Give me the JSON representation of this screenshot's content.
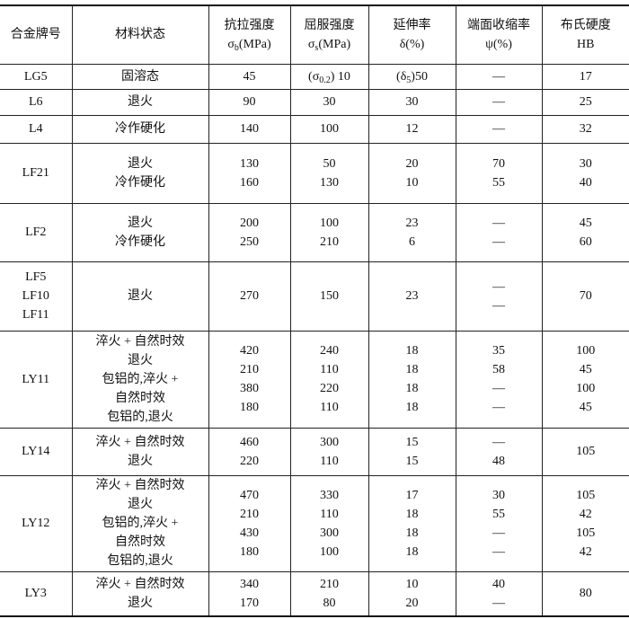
{
  "header": [
    [
      [
        "合金牌号"
      ]
    ],
    [
      [
        "材料状态"
      ]
    ],
    [
      [
        "抗拉强度"
      ],
      [
        [
          "σ",
          ""
        ],
        [
          "b",
          "sub"
        ],
        [
          "(MPa)",
          ""
        ]
      ]
    ],
    [
      [
        "屈服强度"
      ],
      [
        [
          "σ",
          ""
        ],
        [
          "s",
          "sub"
        ],
        [
          "(MPa)",
          ""
        ]
      ]
    ],
    [
      [
        "延伸率"
      ],
      [
        "δ(%)"
      ]
    ],
    [
      [
        "端面收缩率"
      ],
      [
        "ψ(%)"
      ]
    ],
    [
      [
        "布氏硬度"
      ],
      [
        "HB"
      ]
    ]
  ],
  "rows": [
    {
      "h": 28,
      "cells": [
        [
          "LG5"
        ],
        [
          "固溶态"
        ],
        [
          "45"
        ],
        [
          [
            [
              "(σ",
              ""
            ],
            [
              "0.2",
              "sub"
            ],
            [
              ") 10",
              ""
            ]
          ]
        ],
        [
          [
            [
              "(δ",
              ""
            ],
            [
              "5",
              "sub"
            ],
            [
              ")50",
              ""
            ]
          ]
        ],
        [
          "—"
        ],
        [
          "17"
        ]
      ]
    },
    {
      "h": 29,
      "cells": [
        [
          "L6"
        ],
        [
          "退火"
        ],
        [
          "90"
        ],
        [
          "30"
        ],
        [
          "30"
        ],
        [
          "—"
        ],
        [
          "25"
        ]
      ]
    },
    {
      "h": 31,
      "cells": [
        [
          "L4"
        ],
        [
          "冷作硬化"
        ],
        [
          "140"
        ],
        [
          "100"
        ],
        [
          "12"
        ],
        [
          "—"
        ],
        [
          "32"
        ]
      ]
    },
    {
      "h": 67,
      "cells": [
        [
          "LF21"
        ],
        [
          "退火",
          "冷作硬化"
        ],
        [
          "130",
          "160"
        ],
        [
          "50",
          "130"
        ],
        [
          "20",
          "10"
        ],
        [
          "70",
          "55"
        ],
        [
          "30",
          "40"
        ]
      ]
    },
    {
      "h": 65,
      "cells": [
        [
          "LF2"
        ],
        [
          "退火",
          "冷作硬化"
        ],
        [
          "200",
          "250"
        ],
        [
          "100",
          "210"
        ],
        [
          "23",
          "6"
        ],
        [
          "—",
          "—"
        ],
        [
          "45",
          "60"
        ]
      ]
    },
    {
      "h": 77,
      "cells": [
        [
          "LF5",
          "LF10",
          "LF11"
        ],
        [
          "退火"
        ],
        [
          "270"
        ],
        [
          "150"
        ],
        [
          "23"
        ],
        [
          "—",
          "—"
        ],
        [
          "70"
        ]
      ]
    },
    {
      "h": 108,
      "cells": [
        [
          "LY11"
        ],
        [
          "淬火 + 自然时效",
          "退火",
          "包铝的,淬火 +",
          "自然时效",
          "包铝的,退火"
        ],
        [
          "420",
          "210",
          "380",
          "180"
        ],
        [
          "240",
          "110",
          "220",
          "110"
        ],
        [
          "18",
          "18",
          "18",
          "18"
        ],
        [
          "35",
          "58",
          "—",
          "—"
        ],
        [
          "100",
          "45",
          "100",
          "45"
        ]
      ]
    },
    {
      "h": 53,
      "cells": [
        [
          "LY14"
        ],
        [
          "淬火 + 自然时效",
          "退火"
        ],
        [
          "460",
          "220"
        ],
        [
          "300",
          "110"
        ],
        [
          "15",
          "15"
        ],
        [
          "—",
          "48"
        ],
        [
          "105",
          ""
        ]
      ]
    },
    {
      "h": 107,
      "cells": [
        [
          "LY12"
        ],
        [
          "淬火 + 自然时效",
          "退火",
          "包铝的,淬火 +",
          "自然时效",
          "包铝的,退火"
        ],
        [
          "470",
          "210",
          "430",
          "180"
        ],
        [
          "330",
          "110",
          "300",
          "100"
        ],
        [
          "17",
          "18",
          "18",
          "18"
        ],
        [
          "30",
          "55",
          "—",
          "—"
        ],
        [
          "105",
          "42",
          "105",
          "42"
        ]
      ]
    },
    {
      "h": 50,
      "cells": [
        [
          "LY3"
        ],
        [
          "淬火 + 自然时效",
          "退火"
        ],
        [
          "340",
          "170"
        ],
        [
          "210",
          "80"
        ],
        [
          "10",
          "20"
        ],
        [
          "40",
          "—"
        ],
        [
          "80",
          ""
        ]
      ]
    }
  ]
}
